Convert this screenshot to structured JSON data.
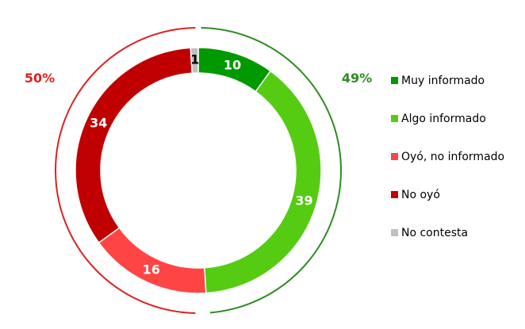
{
  "chart_data": {
    "type": "donut",
    "categories": [
      "Muy informado",
      "Algo informado",
      "Oyó, no informado",
      "No oyó",
      "No contesta"
    ],
    "values": [
      10,
      39,
      16,
      34,
      1
    ],
    "colors": [
      "#009900",
      "#55cc11",
      "#ff4444",
      "#c00000",
      "#c0c0c0"
    ],
    "label_colors": [
      "#ffffff",
      "#ffffff",
      "#ffffff",
      "#ffffff",
      "#000000"
    ],
    "group_totals": [
      {
        "value": 49,
        "label": "49%",
        "color": "#2e8b22",
        "direction": "clockwise"
      },
      {
        "value": 50,
        "label": "50%",
        "color": "#dd2222",
        "direction": "counterclockwise"
      }
    ],
    "legend": "right"
  }
}
